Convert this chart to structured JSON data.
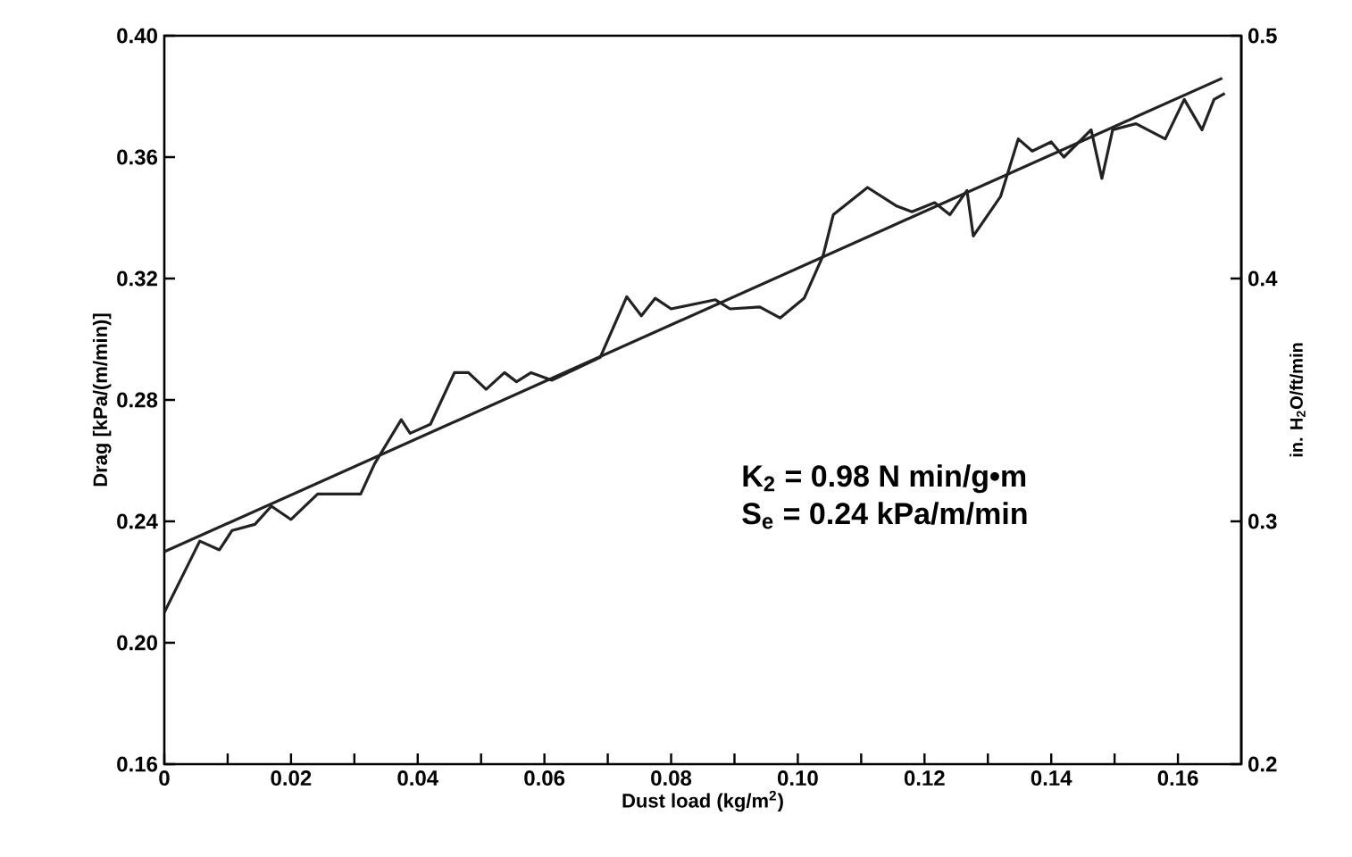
{
  "chart_data": {
    "type": "line",
    "xlabel": "Dust load (kg/m$^{2}$)",
    "ylabel": "Drag [kPa/(m/min)]",
    "y2label": "in. H$_{2}$O/ft/min",
    "annotations": [
      "K$_{2}$ = 0.98 N min/g•m",
      "S$_{e}$ = 0.24 kPa/m/min"
    ],
    "xlim": [
      0,
      0.17
    ],
    "xticks": [
      0,
      {
        "value": 0.01,
        "label": null
      },
      0.02,
      {
        "value": 0.03,
        "label": null
      },
      0.04,
      {
        "value": 0.05,
        "label": null
      },
      0.06,
      {
        "value": 0.07,
        "label": null
      },
      0.08,
      {
        "value": 0.09,
        "label": null
      },
      {
        "value": 0.1,
        "label": "0.10"
      },
      {
        "value": 0.11,
        "label": null
      },
      0.12,
      {
        "value": 0.13,
        "label": null
      },
      0.14,
      {
        "value": 0.15,
        "label": null
      },
      0.16
    ],
    "ylim": [
      0.16,
      0.4
    ],
    "yticks": [
      0.16,
      {
        "value": 0.2,
        "label": "0.20"
      },
      0.24,
      0.28,
      0.32,
      0.36,
      {
        "value": 0.4,
        "label": "0.40"
      }
    ],
    "y2lim": [
      0.2,
      0.5
    ],
    "y2ticks": [
      0.2,
      0.3,
      0.4,
      0.5
    ],
    "series": [
      {
        "color": "#222222",
        "x": [
          0,
          0.0056,
          0.0087,
          0.0107,
          0.0143,
          0.0169,
          0.02,
          0.0242,
          0.031,
          0.0332,
          0.0374,
          0.0388,
          0.042,
          0.0458,
          0.048,
          0.0508,
          0.0537,
          0.0556,
          0.0579,
          0.0612,
          0.0688,
          0.073,
          0.0753,
          0.0775,
          0.08,
          0.087,
          0.0893,
          0.094,
          0.0972,
          0.101,
          0.104,
          0.1056,
          0.111,
          0.1155,
          0.118,
          0.1216,
          0.124,
          0.1267,
          0.1277,
          0.132,
          0.1348,
          0.137,
          0.14,
          0.142,
          0.1463,
          0.148,
          0.1497,
          0.1534,
          0.158,
          0.161,
          0.1638,
          0.1657,
          0.1674
        ],
        "values": [
          0.21,
          0.2335,
          0.2306,
          0.237,
          0.239,
          0.245,
          0.2406,
          0.249,
          0.249,
          0.259,
          0.2735,
          0.269,
          0.272,
          0.289,
          0.289,
          0.2835,
          0.289,
          0.286,
          0.289,
          0.2865,
          0.294,
          0.314,
          0.3077,
          0.3135,
          0.31,
          0.313,
          0.31,
          0.3106,
          0.307,
          0.3135,
          0.3276,
          0.341,
          0.35,
          0.344,
          0.342,
          0.345,
          0.341,
          0.349,
          0.334,
          0.347,
          0.366,
          0.362,
          0.365,
          0.36,
          0.369,
          0.353,
          0.369,
          0.371,
          0.366,
          0.379,
          0.369,
          0.379,
          0.381
        ]
      },
      {
        "color": "#222222",
        "x": [
          0,
          0.167
        ],
        "values": [
          0.23,
          0.386
        ]
      }
    ]
  }
}
